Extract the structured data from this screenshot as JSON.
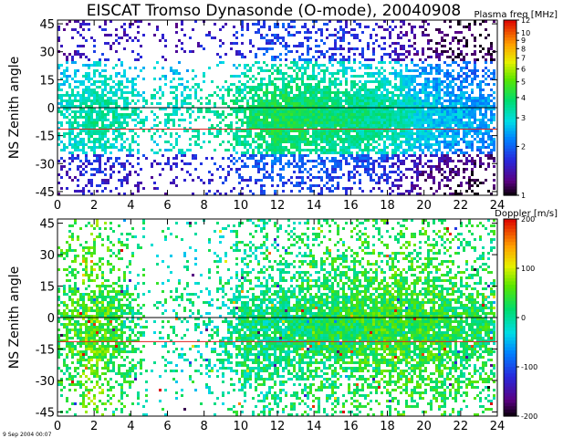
{
  "title": "EISCAT Tromso Dynasonde (O-mode),  20040908",
  "footer_date": "9 Sep 2004 00:07",
  "chart_data": [
    {
      "type": "heatmap",
      "name": "plasma-frequency-panel",
      "ylabel": "NS Zenith angle",
      "xlim": [
        0,
        24
      ],
      "ylim": [
        -47,
        47
      ],
      "x_ticks": [
        0,
        2,
        4,
        6,
        8,
        10,
        12,
        14,
        16,
        18,
        20,
        22,
        24
      ],
      "y_ticks": [
        45,
        30,
        15,
        0,
        -15,
        -30,
        -45
      ],
      "reference_lines": [
        {
          "y": 0,
          "color": "#000000"
        },
        {
          "y": -11.5,
          "color": "#e02020"
        }
      ],
      "colorbar": {
        "label": "Plasma freq [MHz]",
        "scale": "log",
        "range": [
          1,
          12
        ],
        "ticks": [
          "12",
          "10",
          "9",
          "8",
          "7",
          "6",
          "5",
          "4",
          "3",
          "2",
          "1"
        ]
      },
      "activity": [
        {
          "hour": 0.2,
          "level": 0.6
        },
        {
          "hour": 1.0,
          "level": 0.7
        },
        {
          "hour": 2.0,
          "level": 0.9
        },
        {
          "hour": 3.0,
          "level": 0.8
        },
        {
          "hour": 4.0,
          "level": 0.6
        },
        {
          "hour": 5.0,
          "level": 0.15
        },
        {
          "hour": 6.0,
          "level": 0.35
        },
        {
          "hour": 7.0,
          "level": 0.4
        },
        {
          "hour": 8.0,
          "level": 0.3
        },
        {
          "hour": 9.0,
          "level": 0.35
        },
        {
          "hour": 10.0,
          "level": 0.65
        },
        {
          "hour": 11.0,
          "level": 0.9
        },
        {
          "hour": 12.0,
          "level": 1.0
        },
        {
          "hour": 13.0,
          "level": 1.0
        },
        {
          "hour": 14.0,
          "level": 1.0
        },
        {
          "hour": 15.0,
          "level": 1.0
        },
        {
          "hour": 16.0,
          "level": 1.0
        },
        {
          "hour": 17.0,
          "level": 1.0
        },
        {
          "hour": 18.0,
          "level": 1.0
        },
        {
          "hour": 19.0,
          "level": 1.0
        },
        {
          "hour": 20.0,
          "level": 1.0
        },
        {
          "hour": 21.0,
          "level": 0.95
        },
        {
          "hour": 22.0,
          "level": 0.85
        },
        {
          "hour": 23.0,
          "level": 0.8
        },
        {
          "hour": 24.0,
          "level": 0.7
        }
      ],
      "values_by_hour": [
        {
          "hour": 0,
          "mhz": 2.8
        },
        {
          "hour": 2,
          "mhz": 3.2
        },
        {
          "hour": 4,
          "mhz": 3.0
        },
        {
          "hour": 6,
          "mhz": 2.9
        },
        {
          "hour": 8,
          "mhz": 3.1
        },
        {
          "hour": 10,
          "mhz": 3.4
        },
        {
          "hour": 12,
          "mhz": 3.8
        },
        {
          "hour": 14,
          "mhz": 3.6
        },
        {
          "hour": 16,
          "mhz": 3.4
        },
        {
          "hour": 18,
          "mhz": 3.2
        },
        {
          "hour": 20,
          "mhz": 2.6
        },
        {
          "hour": 22,
          "mhz": 2.3
        },
        {
          "hour": 24,
          "mhz": 2.2
        }
      ]
    },
    {
      "type": "heatmap",
      "name": "doppler-panel",
      "ylabel": "NS Zenith angle",
      "xlim": [
        0,
        24
      ],
      "ylim": [
        -47,
        47
      ],
      "x_ticks": [
        0,
        2,
        4,
        6,
        8,
        10,
        12,
        14,
        16,
        18,
        20,
        22,
        24
      ],
      "y_ticks": [
        45,
        30,
        15,
        0,
        -15,
        -30,
        -45
      ],
      "reference_lines": [
        {
          "y": 0,
          "color": "#000000"
        },
        {
          "y": -11.5,
          "color": "#e02020"
        }
      ],
      "colorbar": {
        "label": "Doppler [m/s]",
        "scale": "linear",
        "range": [
          -200,
          200
        ],
        "ticks": [
          "200",
          "100",
          "0",
          "-100",
          "-200"
        ]
      },
      "activity": [
        {
          "hour": 0.2,
          "level": 0.7
        },
        {
          "hour": 1.0,
          "level": 0.8
        },
        {
          "hour": 2.0,
          "level": 0.9
        },
        {
          "hour": 3.0,
          "level": 0.8
        },
        {
          "hour": 4.0,
          "level": 0.6
        },
        {
          "hour": 5.0,
          "level": 0.1
        },
        {
          "hour": 6.0,
          "level": 0.2
        },
        {
          "hour": 7.0,
          "level": 0.3
        },
        {
          "hour": 8.0,
          "level": 0.25
        },
        {
          "hour": 9.0,
          "level": 0.35
        },
        {
          "hour": 10.0,
          "level": 0.8
        },
        {
          "hour": 11.0,
          "level": 0.9
        },
        {
          "hour": 12.0,
          "level": 0.95
        },
        {
          "hour": 13.0,
          "level": 1.0
        },
        {
          "hour": 14.0,
          "level": 1.0
        },
        {
          "hour": 15.0,
          "level": 1.0
        },
        {
          "hour": 16.0,
          "level": 1.0
        },
        {
          "hour": 17.0,
          "level": 1.0
        },
        {
          "hour": 18.0,
          "level": 1.0
        },
        {
          "hour": 19.0,
          "level": 1.0
        },
        {
          "hour": 20.0,
          "level": 1.0
        },
        {
          "hour": 21.0,
          "level": 0.95
        },
        {
          "hour": 22.0,
          "level": 0.9
        },
        {
          "hour": 23.0,
          "level": 0.85
        },
        {
          "hour": 24.0,
          "level": 0.7
        }
      ],
      "values_by_hour": [
        {
          "hour": 0,
          "ms": 30
        },
        {
          "hour": 2,
          "ms": 60
        },
        {
          "hour": 4,
          "ms": 20
        },
        {
          "hour": 6,
          "ms": 0
        },
        {
          "hour": 8,
          "ms": -10
        },
        {
          "hour": 10,
          "ms": 10
        },
        {
          "hour": 12,
          "ms": 10
        },
        {
          "hour": 14,
          "ms": 20
        },
        {
          "hour": 16,
          "ms": 30
        },
        {
          "hour": 18,
          "ms": 40
        },
        {
          "hour": 20,
          "ms": 40
        },
        {
          "hour": 22,
          "ms": 30
        },
        {
          "hour": 24,
          "ms": 20
        }
      ]
    }
  ]
}
